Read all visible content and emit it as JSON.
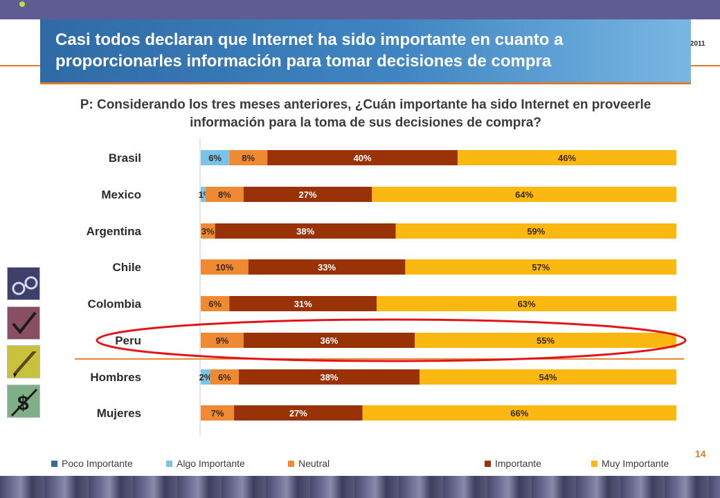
{
  "header": {
    "title": "Casi todos declaran que Internet ha sido importante en cuanto a proporcionarles información para tomar decisiones de compra",
    "date_fragment": "o 2011"
  },
  "question": "P: Considerando los tres meses anteriores, ¿Cuán importante ha sido Internet en proveerle información para la toma de sus decisiones de compra?",
  "page_number": "14",
  "side_icons": [
    "glasses-icon",
    "pen-check-icon",
    "pencil-icon",
    "dollar-pen-icon"
  ],
  "chart_data": {
    "type": "bar",
    "orientation": "horizontal",
    "stacked": true,
    "unit": "%",
    "categories": [
      "Brasil",
      "Mexico",
      "Argentina",
      "Chile",
      "Colombia",
      "Peru",
      "Hombres",
      "Mujeres"
    ],
    "highlighted_category": "Peru",
    "separator_after": "Peru",
    "series": [
      {
        "name": "Poco Importante",
        "color": "#2e6e9e",
        "values": [
          0,
          0,
          0,
          0,
          0,
          0,
          0,
          0
        ]
      },
      {
        "name": "Algo Importante",
        "color": "#7cc3ea",
        "values": [
          6,
          1,
          0,
          0,
          0,
          0,
          2,
          0
        ]
      },
      {
        "name": "Neutral",
        "color": "#ef8a33",
        "values": [
          8,
          8,
          3,
          10,
          6,
          9,
          6,
          7
        ]
      },
      {
        "name": "Importante",
        "color": "#9a3208",
        "values": [
          40,
          27,
          38,
          33,
          31,
          36,
          38,
          27
        ]
      },
      {
        "name": "Muy Importante",
        "color": "#fbb810",
        "values": [
          46,
          64,
          59,
          57,
          63,
          55,
          54,
          66
        ]
      }
    ],
    "data_labels": [
      [
        "",
        "6%",
        "8%",
        "40%",
        "46%"
      ],
      [
        "",
        "1%",
        "8%",
        "27%",
        "64%"
      ],
      [
        "",
        "",
        "3%",
        "38%",
        "59%"
      ],
      [
        "",
        "",
        "10%",
        "33%",
        "57%"
      ],
      [
        "",
        "",
        "6%",
        "31%",
        "63%"
      ],
      [
        "",
        "",
        "9%",
        "36%",
        "55%"
      ],
      [
        "",
        "2%",
        "6%",
        "38%",
        "54%"
      ],
      [
        "",
        "",
        "7%",
        "27%",
        "66%"
      ]
    ],
    "legend_position": "bottom",
    "grid": false,
    "xlim": [
      0,
      100
    ]
  }
}
